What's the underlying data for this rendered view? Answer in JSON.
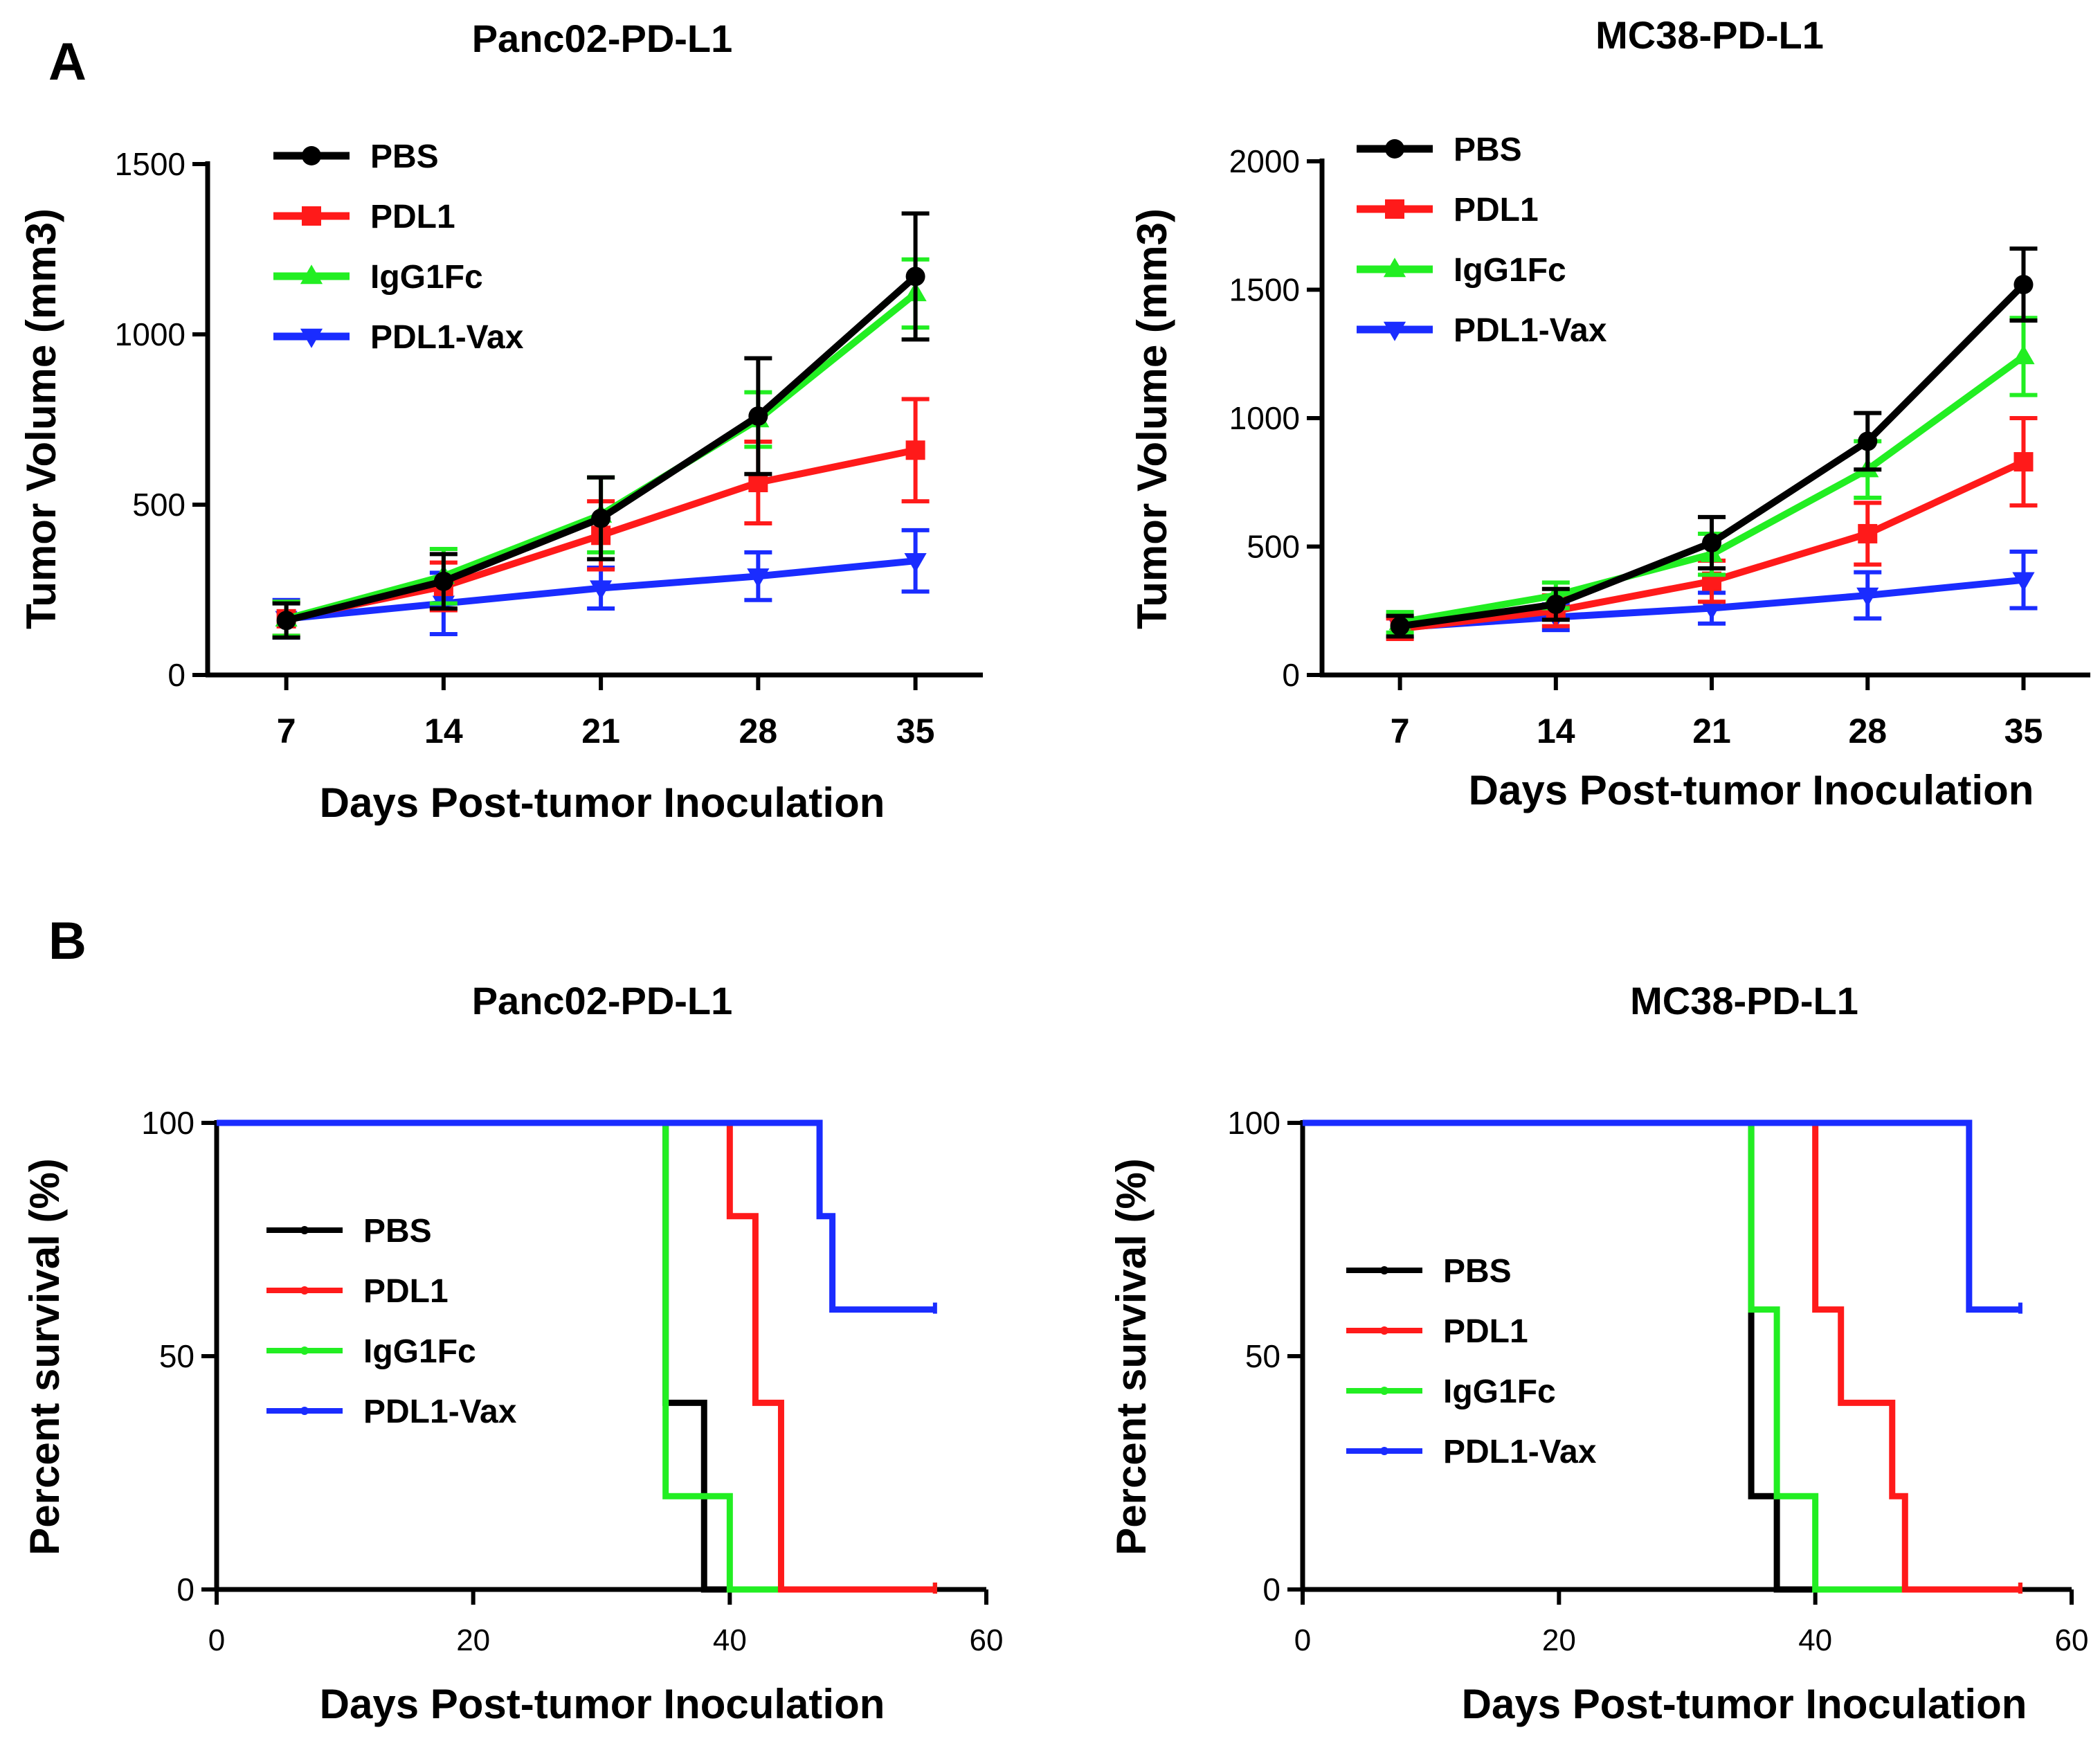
{
  "panel_labels": [
    "A",
    "B"
  ],
  "colors": {
    "PBS": "#000000",
    "PDL1": "#ff1a1a",
    "IgG1Fc": "#22ee22",
    "PDL1-Vax": "#1a2cff"
  },
  "chart_data": [
    {
      "panel": "A",
      "type": "line",
      "title": "Panc02-PD-L1",
      "xlabel": "Days Post-tumor Inoculation",
      "ylabel": "Tumor Volume (mm3)",
      "x": [
        7,
        14,
        21,
        28,
        35
      ],
      "xticks": [
        7,
        14,
        21,
        28,
        35
      ],
      "xlim": [
        3.5,
        38
      ],
      "ylim": [
        0,
        1500
      ],
      "yticks": [
        0,
        500,
        1000,
        1500
      ],
      "legend": "top-left",
      "series": [
        {
          "name": "PBS",
          "color": "#000000",
          "marker": "circle",
          "values": [
            160,
            275,
            460,
            760,
            1170
          ],
          "err": [
            50,
            80,
            120,
            170,
            185
          ]
        },
        {
          "name": "PDL1",
          "color": "#ff1a1a",
          "marker": "square",
          "values": [
            165,
            260,
            410,
            565,
            660
          ],
          "err": [
            50,
            70,
            100,
            120,
            150
          ]
        },
        {
          "name": "IgG1Fc",
          "color": "#22ee22",
          "marker": "triangle",
          "values": [
            165,
            290,
            470,
            750,
            1120
          ],
          "err": [
            50,
            80,
            110,
            80,
            100
          ]
        },
        {
          "name": "PDL1-Vax",
          "color": "#1a2cff",
          "marker": "tri-down",
          "values": [
            165,
            210,
            255,
            290,
            335
          ],
          "err": [
            55,
            90,
            60,
            70,
            90
          ]
        }
      ]
    },
    {
      "panel": "A",
      "type": "line",
      "title": "MC38-PD-L1",
      "xlabel": "Days Post-tumor Inoculation",
      "ylabel": "Tumor Volume (mm3)",
      "x": [
        7,
        14,
        21,
        28,
        35
      ],
      "xticks": [
        7,
        14,
        21,
        28,
        35
      ],
      "xlim": [
        3.5,
        38
      ],
      "ylim": [
        0,
        2000
      ],
      "yticks": [
        0,
        500,
        1000,
        1500,
        2000
      ],
      "legend": "top-left",
      "series": [
        {
          "name": "PBS",
          "color": "#000000",
          "marker": "circle",
          "values": [
            190,
            275,
            515,
            910,
            1520
          ],
          "err": [
            40,
            60,
            100,
            110,
            140
          ]
        },
        {
          "name": "PDL1",
          "color": "#ff1a1a",
          "marker": "square",
          "values": [
            180,
            250,
            365,
            550,
            830
          ],
          "err": [
            40,
            60,
            80,
            120,
            170
          ]
        },
        {
          "name": "IgG1Fc",
          "color": "#22ee22",
          "marker": "triangle",
          "values": [
            205,
            310,
            470,
            800,
            1240
          ],
          "err": [
            40,
            50,
            80,
            110,
            150
          ]
        },
        {
          "name": "PDL1-Vax",
          "color": "#1a2cff",
          "marker": "tri-down",
          "values": [
            185,
            225,
            260,
            310,
            370
          ],
          "err": [
            40,
            50,
            60,
            90,
            110
          ]
        }
      ]
    },
    {
      "panel": "B",
      "type": "line",
      "subtype": "survival-step",
      "title": "Panc02-PD-L1",
      "xlabel": "Days  Post-tumor Inoculation",
      "ylabel": "Percent survival (%)",
      "xlim": [
        0,
        60
      ],
      "xticks": [
        0,
        20,
        40,
        60
      ],
      "ylim": [
        0,
        100
      ],
      "yticks": [
        0,
        50,
        100
      ],
      "legend": "center-left",
      "series": [
        {
          "name": "PBS",
          "color": "#000000",
          "steps": [
            [
              0,
              100
            ],
            [
              35,
              100
            ],
            [
              35,
              40
            ],
            [
              38,
              40
            ],
            [
              38,
              0
            ],
            [
              56,
              0
            ]
          ]
        },
        {
          "name": "PDL1",
          "color": "#ff1a1a",
          "steps": [
            [
              0,
              100
            ],
            [
              40,
              100
            ],
            [
              40,
              80
            ],
            [
              42,
              80
            ],
            [
              42,
              40
            ],
            [
              44,
              40
            ],
            [
              44,
              0
            ],
            [
              56,
              0
            ]
          ]
        },
        {
          "name": "IgG1Fc",
          "color": "#22ee22",
          "steps": [
            [
              0,
              100
            ],
            [
              35,
              100
            ],
            [
              35,
              20
            ],
            [
              40,
              20
            ],
            [
              40,
              0
            ],
            [
              56,
              0
            ]
          ]
        },
        {
          "name": "PDL1-Vax",
          "color": "#1a2cff",
          "steps": [
            [
              0,
              100
            ],
            [
              47,
              100
            ],
            [
              47,
              80
            ],
            [
              48,
              80
            ],
            [
              48,
              60
            ],
            [
              56,
              60
            ]
          ]
        }
      ]
    },
    {
      "panel": "B",
      "type": "line",
      "subtype": "survival-step",
      "title": "MC38-PD-L1",
      "xlabel": "Days  Post-tumor Inoculation",
      "ylabel": "Percent survival (%)",
      "xlim": [
        0,
        60
      ],
      "xticks": [
        0,
        20,
        40,
        60
      ],
      "ylim": [
        0,
        100
      ],
      "yticks": [
        0,
        50,
        100
      ],
      "legend": "center-left",
      "series": [
        {
          "name": "PBS",
          "color": "#000000",
          "steps": [
            [
              0,
              100
            ],
            [
              35,
              100
            ],
            [
              35,
              20
            ],
            [
              37,
              20
            ],
            [
              37,
              0
            ],
            [
              56,
              0
            ]
          ]
        },
        {
          "name": "PDL1",
          "color": "#ff1a1a",
          "steps": [
            [
              0,
              100
            ],
            [
              40,
              100
            ],
            [
              40,
              60
            ],
            [
              42,
              60
            ],
            [
              42,
              40
            ],
            [
              46,
              40
            ],
            [
              46,
              20
            ],
            [
              47,
              20
            ],
            [
              47,
              0
            ],
            [
              56,
              0
            ]
          ]
        },
        {
          "name": "IgG1Fc",
          "color": "#22ee22",
          "steps": [
            [
              0,
              100
            ],
            [
              35,
              100
            ],
            [
              35,
              60
            ],
            [
              37,
              60
            ],
            [
              37,
              20
            ],
            [
              40,
              20
            ],
            [
              40,
              0
            ],
            [
              56,
              0
            ]
          ]
        },
        {
          "name": "PDL1-Vax",
          "color": "#1a2cff",
          "steps": [
            [
              0,
              100
            ],
            [
              52,
              100
            ],
            [
              52,
              60
            ],
            [
              56,
              60
            ]
          ]
        }
      ]
    }
  ]
}
